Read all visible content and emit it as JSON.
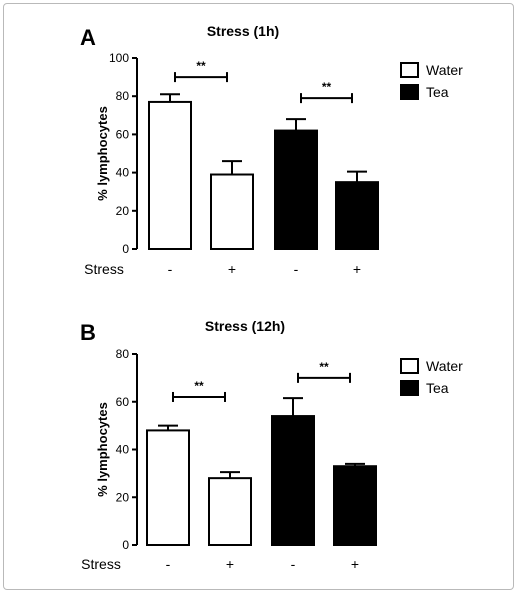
{
  "chart_data": [
    {
      "type": "bar",
      "panel": "A",
      "title": "Stress (1h)",
      "ylabel": "% lymphocytes",
      "xlabel": "Stress",
      "ylim": [
        0,
        100
      ],
      "yticks": [
        0,
        20,
        40,
        60,
        80,
        100
      ],
      "categories": [
        "-",
        "+",
        "-",
        "+"
      ],
      "bars": [
        {
          "group": "Water",
          "stress": "-",
          "value": 77,
          "error": 4
        },
        {
          "group": "Water",
          "stress": "+",
          "value": 39,
          "error": 7
        },
        {
          "group": "Tea",
          "stress": "-",
          "value": 62,
          "error": 6
        },
        {
          "group": "Tea",
          "stress": "+",
          "value": 35,
          "error": 5.5
        }
      ],
      "significance": [
        {
          "from": 0,
          "to": 1,
          "label": "**",
          "y": 90
        },
        {
          "from": 2,
          "to": 3,
          "label": "**",
          "y": 79
        }
      ],
      "legend": [
        {
          "name": "Water",
          "fill": "#ffffff"
        },
        {
          "name": "Tea",
          "fill": "#000000"
        }
      ],
      "legend_position": "top-right",
      "grid": false
    },
    {
      "type": "bar",
      "panel": "B",
      "title": "Stress (12h)",
      "ylabel": "% lymphocytes",
      "xlabel": "Stress",
      "ylim": [
        0,
        80
      ],
      "yticks": [
        0,
        20,
        40,
        60,
        80
      ],
      "categories": [
        "-",
        "+",
        "-",
        "+"
      ],
      "bars": [
        {
          "group": "Water",
          "stress": "-",
          "value": 48,
          "error": 2
        },
        {
          "group": "Water",
          "stress": "+",
          "value": 28,
          "error": 2.5
        },
        {
          "group": "Tea",
          "stress": "-",
          "value": 54,
          "error": 7.5
        },
        {
          "group": "Tea",
          "stress": "+",
          "value": 33,
          "error": 1
        }
      ],
      "significance": [
        {
          "from": 0,
          "to": 1,
          "label": "**",
          "y": 62
        },
        {
          "from": 2,
          "to": 3,
          "label": "**",
          "y": 70
        }
      ],
      "legend": [
        {
          "name": "Water",
          "fill": "#ffffff"
        },
        {
          "name": "Tea",
          "fill": "#000000"
        }
      ],
      "legend_position": "top-right",
      "grid": false
    }
  ]
}
